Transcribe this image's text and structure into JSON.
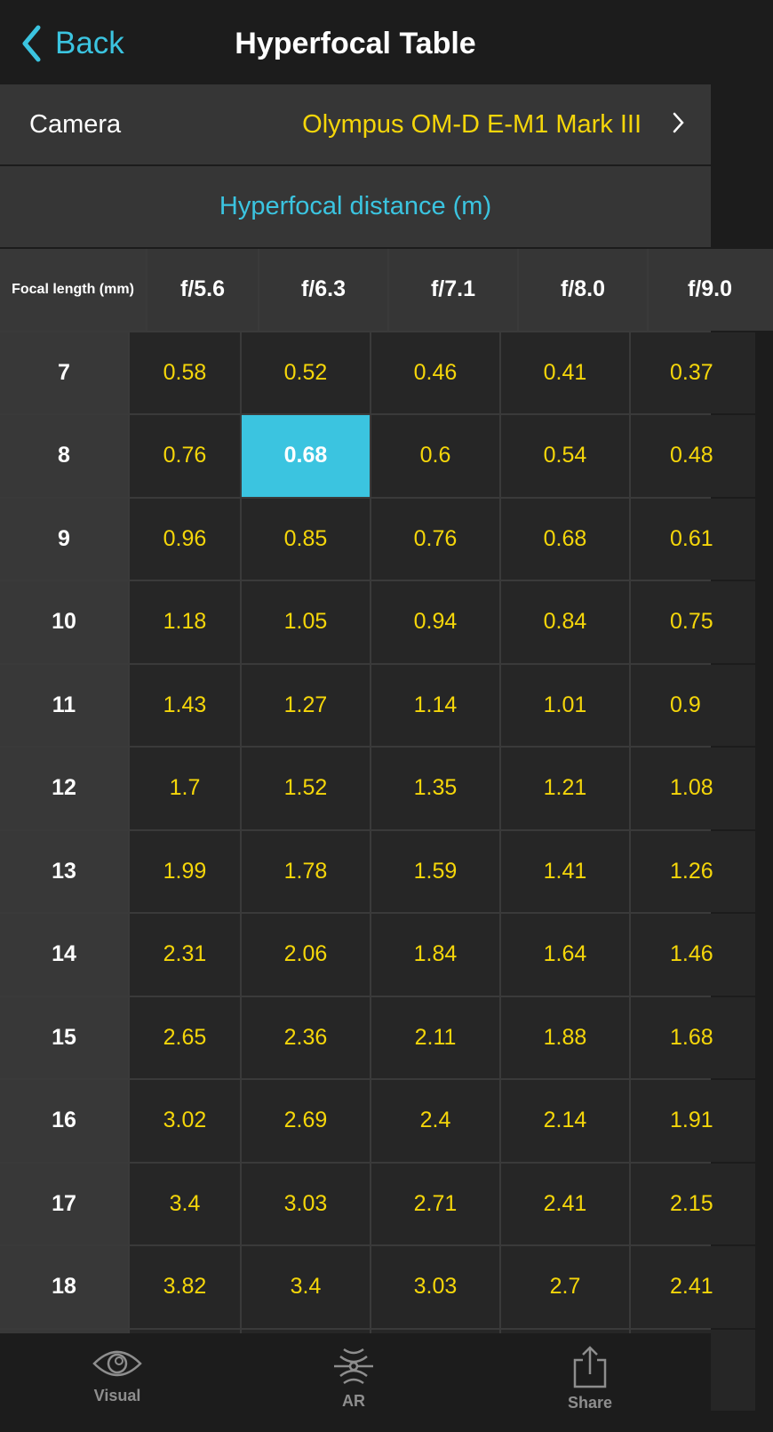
{
  "nav": {
    "back_label": "Back",
    "title": "Hyperfocal Table"
  },
  "camera": {
    "label": "Camera",
    "value": "Olympus OM-D E-M1 Mark III"
  },
  "section_title": "Hyperfocal distance (m)",
  "table": {
    "corner_label": "Focal length (mm)",
    "apertures": [
      "f/5.6",
      "f/6.3",
      "f/7.1",
      "f/8.0",
      "f/9.0"
    ],
    "selected": {
      "focal_length": "8",
      "aperture": "f/6.3"
    },
    "rows": [
      {
        "focal": "7",
        "values": [
          "0.58",
          "0.52",
          "0.46",
          "0.41",
          "0.37"
        ]
      },
      {
        "focal": "8",
        "values": [
          "0.76",
          "0.68",
          "0.6",
          "0.54",
          "0.48"
        ]
      },
      {
        "focal": "9",
        "values": [
          "0.96",
          "0.85",
          "0.76",
          "0.68",
          "0.61"
        ]
      },
      {
        "focal": "10",
        "values": [
          "1.18",
          "1.05",
          "0.94",
          "0.84",
          "0.75"
        ]
      },
      {
        "focal": "11",
        "values": [
          "1.43",
          "1.27",
          "1.14",
          "1.01",
          "0.9"
        ]
      },
      {
        "focal": "12",
        "values": [
          "1.7",
          "1.52",
          "1.35",
          "1.21",
          "1.08"
        ]
      },
      {
        "focal": "13",
        "values": [
          "1.99",
          "1.78",
          "1.59",
          "1.41",
          "1.26"
        ]
      },
      {
        "focal": "14",
        "values": [
          "2.31",
          "2.06",
          "1.84",
          "1.64",
          "1.46"
        ]
      },
      {
        "focal": "15",
        "values": [
          "2.65",
          "2.36",
          "2.11",
          "1.88",
          "1.68"
        ]
      },
      {
        "focal": "16",
        "values": [
          "3.02",
          "2.69",
          "2.4",
          "2.14",
          "1.91"
        ]
      },
      {
        "focal": "17",
        "values": [
          "3.4",
          "3.03",
          "2.71",
          "2.41",
          "2.15"
        ]
      },
      {
        "focal": "18",
        "values": [
          "3.82",
          "3.4",
          "3.03",
          "2.7",
          "2.41"
        ]
      }
    ]
  },
  "tabbar": {
    "items": [
      {
        "label": "Visual",
        "icon": "eye-icon"
      },
      {
        "label": "AR",
        "icon": "ar-icon"
      },
      {
        "label": "Share",
        "icon": "share-icon"
      }
    ]
  },
  "colors": {
    "accent": "#3bc4e0",
    "value": "#f5d60a",
    "background": "#1c1c1c",
    "cell": "#262626"
  }
}
